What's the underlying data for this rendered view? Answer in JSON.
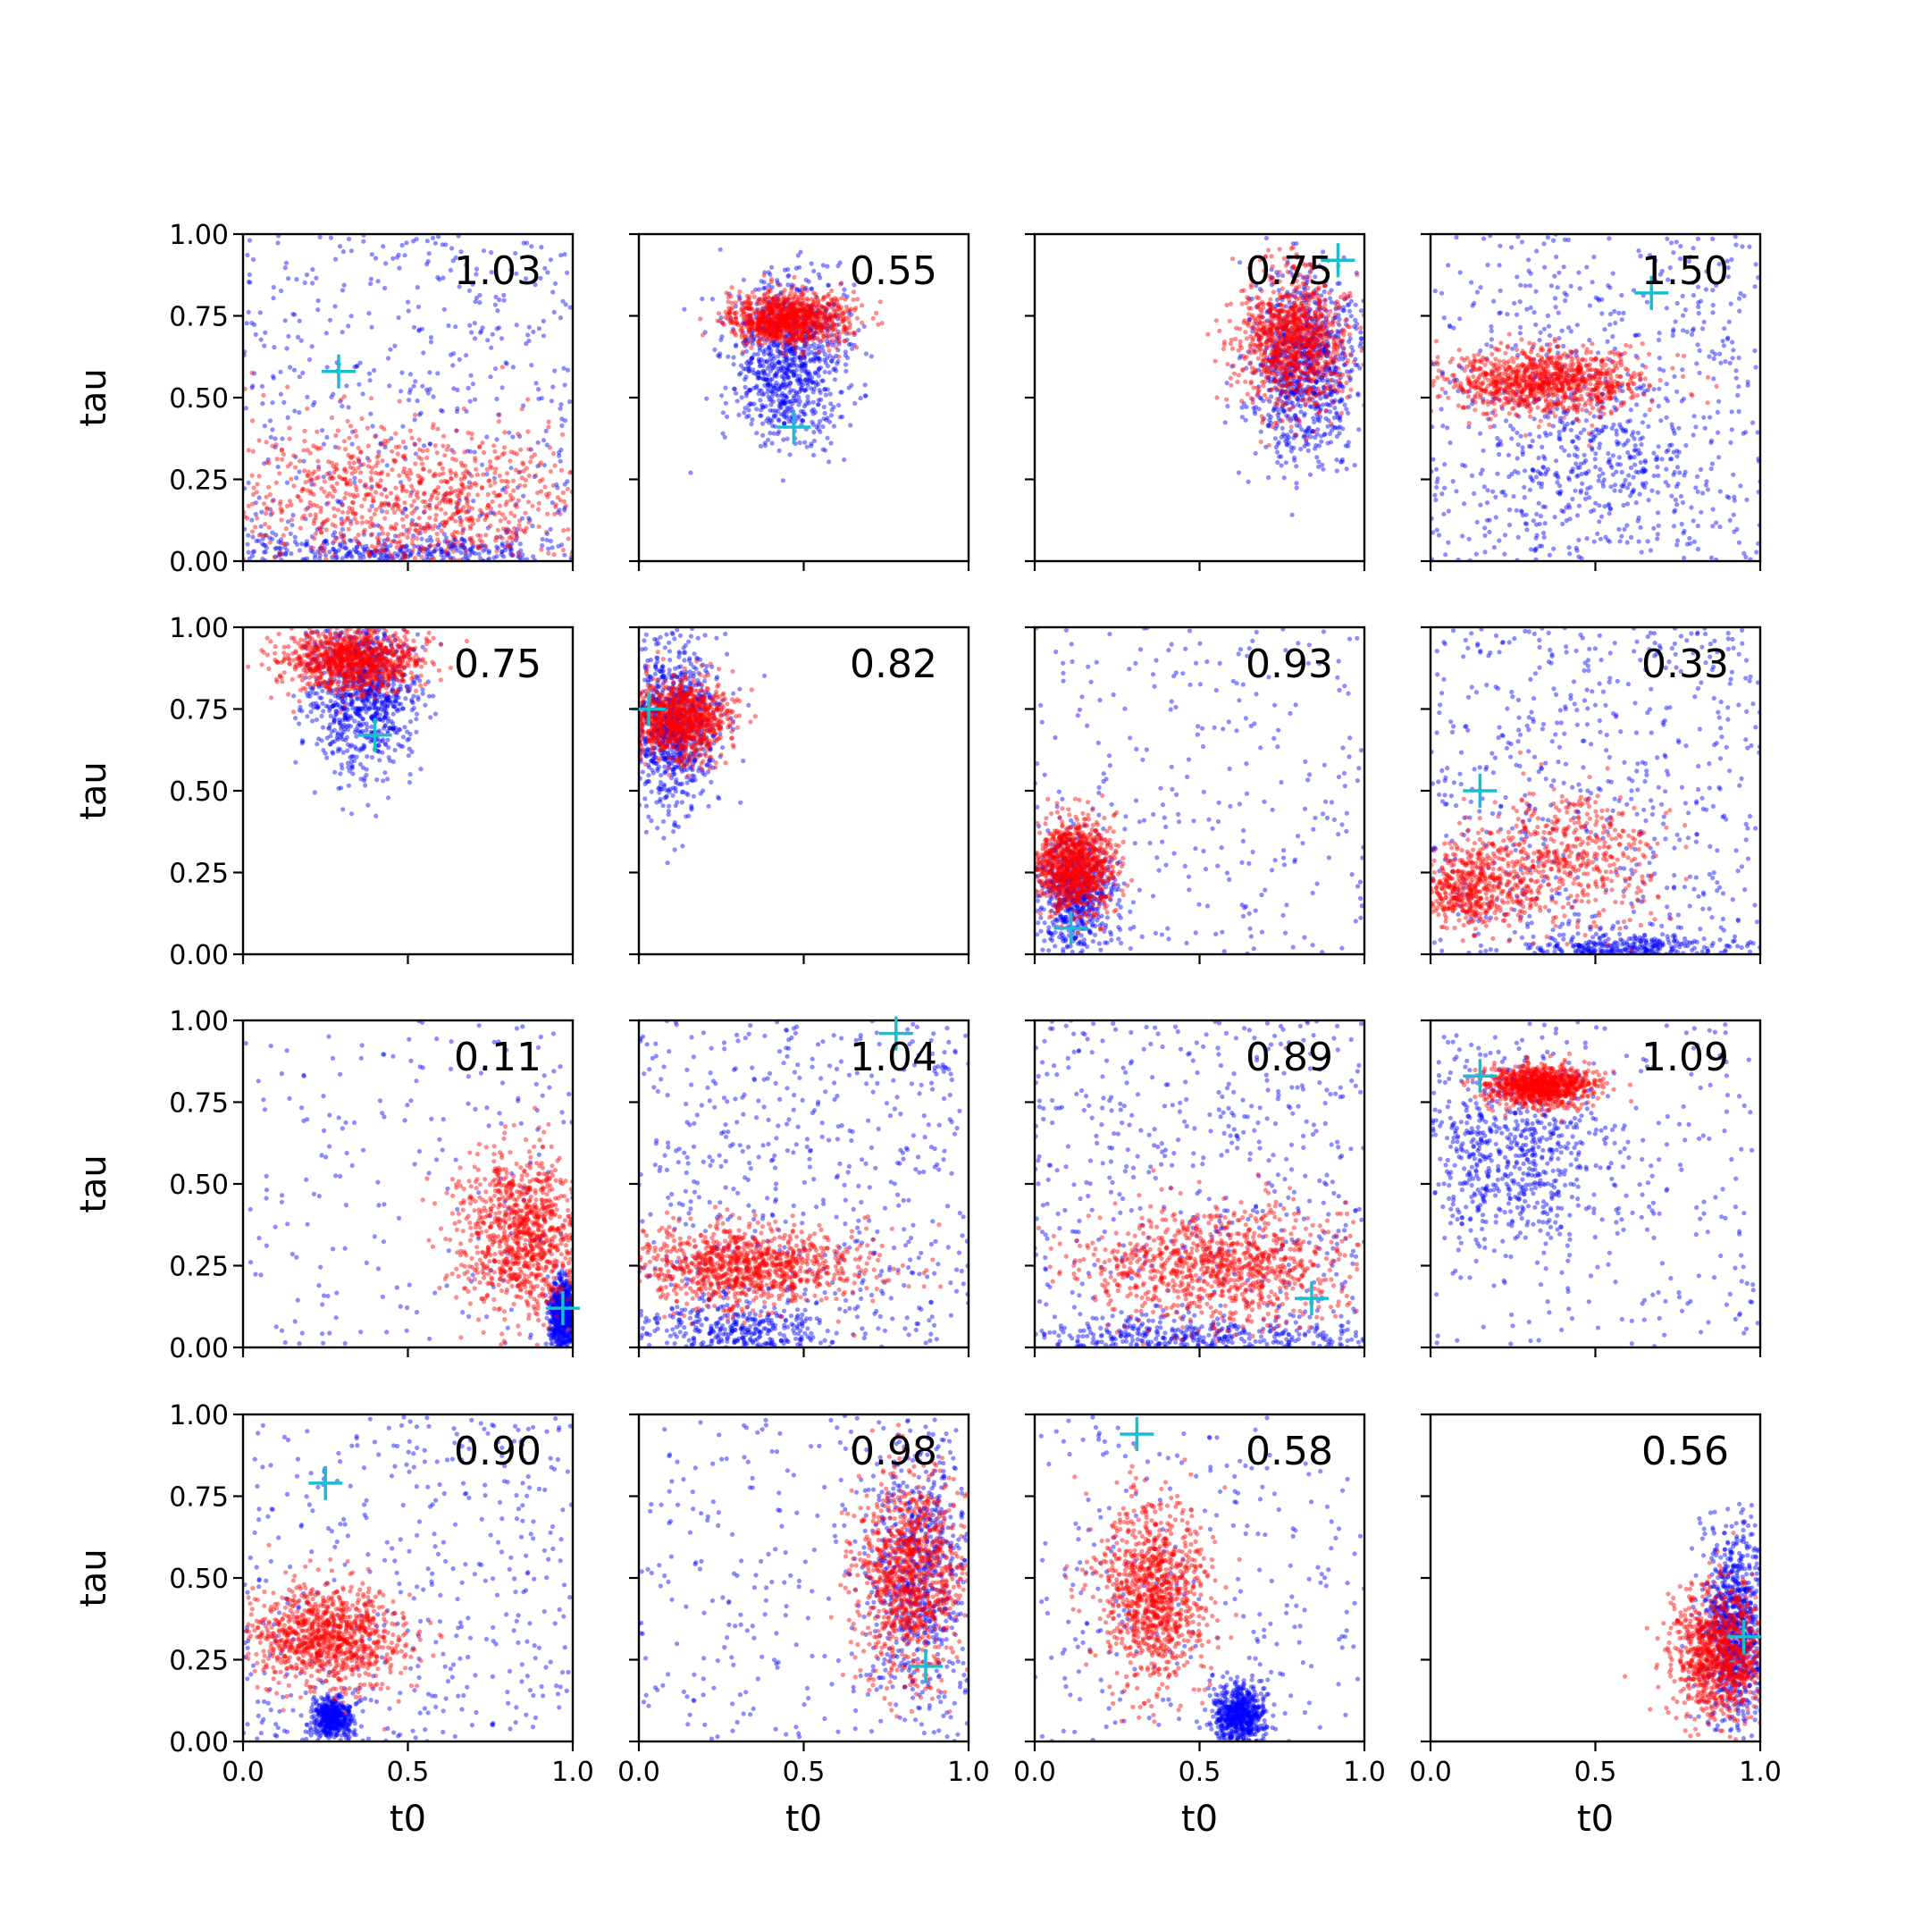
{
  "chart_data": {
    "type": "scatter",
    "layout": "4x4 grid of subplots",
    "xlabel": "t0",
    "ylabel": "tau",
    "xlim": [
      0,
      1
    ],
    "ylim": [
      0,
      1
    ],
    "xticks": [
      "0.0",
      "0.5",
      "1.0"
    ],
    "yticks": [
      "0.00",
      "0.25",
      "0.50",
      "0.75",
      "1.00"
    ],
    "colors": {
      "blue": "#0000ff",
      "red": "#ff0000",
      "marker": "#17becf"
    },
    "panels": [
      {
        "label": "1.03",
        "marker": [
          0.29,
          0.58
        ],
        "blue": {
          "type": "mix",
          "uniform": 0.55,
          "blobs": [
            [
              0.5,
              0.03,
              0.3,
              0.03
            ]
          ]
        },
        "red": {
          "blobs": [
            [
              0.5,
              0.18,
              0.3,
              0.12
            ]
          ]
        }
      },
      {
        "label": "0.55",
        "marker": [
          0.47,
          0.41
        ],
        "blue": {
          "blobs": [
            [
              0.45,
              0.62,
              0.09,
              0.13
            ]
          ]
        },
        "red": {
          "blobs": [
            [
              0.45,
              0.74,
              0.09,
              0.04
            ]
          ]
        }
      },
      {
        "label": "0.75",
        "marker": [
          0.92,
          0.92
        ],
        "blue": {
          "blobs": [
            [
              0.82,
              0.6,
              0.08,
              0.14
            ]
          ]
        },
        "red": {
          "blobs": [
            [
              0.78,
              0.68,
              0.08,
              0.1
            ]
          ]
        }
      },
      {
        "label": "1.50",
        "marker": [
          0.67,
          0.82
        ],
        "blue": {
          "type": "mix",
          "uniform": 0.55,
          "blobs": [
            [
              0.5,
              0.3,
              0.2,
              0.15
            ]
          ]
        },
        "red": {
          "blobs": [
            [
              0.35,
              0.55,
              0.15,
              0.05
            ]
          ]
        }
      },
      {
        "label": "0.75",
        "marker": [
          0.4,
          0.67
        ],
        "blue": {
          "blobs": [
            [
              0.36,
              0.8,
              0.08,
              0.12
            ]
          ]
        },
        "red": {
          "blobs": [
            [
              0.33,
              0.9,
              0.1,
              0.05
            ]
          ]
        }
      },
      {
        "label": "0.82",
        "marker": [
          0.03,
          0.75
        ],
        "blue": {
          "blobs": [
            [
              0.1,
              0.7,
              0.07,
              0.12
            ]
          ]
        },
        "red": {
          "blobs": [
            [
              0.12,
              0.72,
              0.08,
              0.06
            ]
          ]
        }
      },
      {
        "label": "0.93",
        "marker": [
          0.11,
          0.08
        ],
        "blue": {
          "type": "mix",
          "uniform": 0.3,
          "blobs": [
            [
              0.12,
              0.18,
              0.06,
              0.1
            ]
          ]
        },
        "red": {
          "blobs": [
            [
              0.12,
              0.27,
              0.06,
              0.07
            ]
          ]
        }
      },
      {
        "label": "0.33",
        "marker": [
          0.15,
          0.5
        ],
        "blue": {
          "type": "mix",
          "uniform": 0.7,
          "blobs": [
            [
              0.6,
              0.02,
              0.15,
              0.02
            ]
          ]
        },
        "red": {
          "blobs": [
            [
              0.12,
              0.2,
              0.08,
              0.06
            ],
            [
              0.4,
              0.3,
              0.15,
              0.1
            ]
          ]
        }
      },
      {
        "label": "0.11",
        "marker": [
          0.97,
          0.12
        ],
        "blue": {
          "type": "mix",
          "uniform": 0.2,
          "blobs": [
            [
              0.97,
              0.1,
              0.02,
              0.05
            ]
          ]
        },
        "red": {
          "blobs": [
            [
              0.85,
              0.35,
              0.1,
              0.12
            ]
          ]
        }
      },
      {
        "label": "1.04",
        "marker": [
          0.78,
          0.96
        ],
        "blue": {
          "type": "mix",
          "uniform": 0.6,
          "blobs": [
            [
              0.3,
              0.05,
              0.15,
              0.05
            ]
          ]
        },
        "red": {
          "blobs": [
            [
              0.32,
              0.25,
              0.18,
              0.06
            ]
          ]
        }
      },
      {
        "label": "0.89",
        "marker": [
          0.84,
          0.15
        ],
        "blue": {
          "type": "mix",
          "uniform": 0.6,
          "blobs": [
            [
              0.5,
              0.03,
              0.3,
              0.03
            ]
          ]
        },
        "red": {
          "blobs": [
            [
              0.55,
              0.25,
              0.2,
              0.09
            ]
          ]
        }
      },
      {
        "label": "1.09",
        "marker": [
          0.15,
          0.83
        ],
        "blue": {
          "type": "mix",
          "uniform": 0.3,
          "blobs": [
            [
              0.25,
              0.6,
              0.15,
              0.15
            ]
          ]
        },
        "red": {
          "blobs": [
            [
              0.33,
              0.8,
              0.08,
              0.03
            ]
          ]
        }
      },
      {
        "label": "0.90",
        "marker": [
          0.25,
          0.79
        ],
        "blue": {
          "type": "mix",
          "uniform": 0.5,
          "blobs": [
            [
              0.27,
              0.07,
              0.03,
              0.03
            ]
          ]
        },
        "red": {
          "blobs": [
            [
              0.25,
              0.32,
              0.12,
              0.08
            ]
          ]
        }
      },
      {
        "label": "0.98",
        "marker": [
          0.87,
          0.23
        ],
        "blue": {
          "type": "mix",
          "uniform": 0.3,
          "blobs": [
            [
              0.85,
              0.5,
              0.08,
              0.2
            ]
          ]
        },
        "red": {
          "blobs": [
            [
              0.82,
              0.5,
              0.08,
              0.15
            ]
          ]
        }
      },
      {
        "label": "0.58",
        "marker": [
          0.31,
          0.94
        ],
        "blue": {
          "type": "mix",
          "uniform": 0.3,
          "blobs": [
            [
              0.62,
              0.08,
              0.04,
              0.05
            ]
          ]
        },
        "red": {
          "blobs": [
            [
              0.36,
              0.45,
              0.08,
              0.14
            ]
          ]
        }
      },
      {
        "label": "0.56",
        "marker": [
          0.95,
          0.32
        ],
        "blue": {
          "blobs": [
            [
              0.92,
              0.35,
              0.05,
              0.15
            ]
          ]
        },
        "red": {
          "blobs": [
            [
              0.88,
              0.27,
              0.07,
              0.1
            ]
          ]
        }
      }
    ]
  }
}
